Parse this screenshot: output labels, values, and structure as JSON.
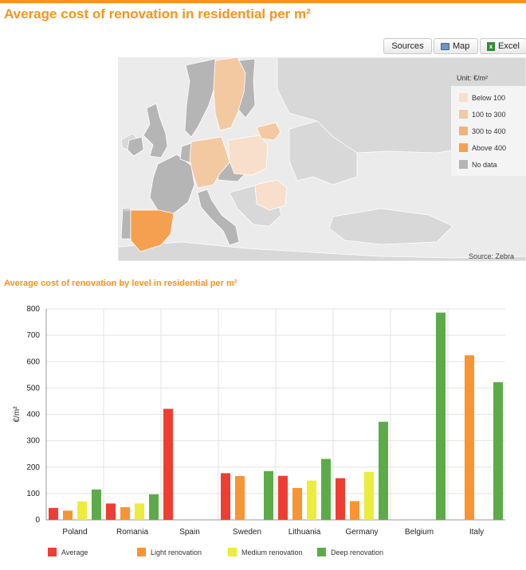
{
  "page": {
    "title": "Average cost of renovation in residential per m²"
  },
  "toolbar": {
    "sources_label": "Sources",
    "map_label": "Map",
    "excel_label": "Excel"
  },
  "map": {
    "unit_label": "Unit: €/m²",
    "legend": [
      {
        "label": "Below 100",
        "color": "#f8dfcb"
      },
      {
        "label": "100 to 300",
        "color": "#f3c9a1"
      },
      {
        "label": "300 to 400",
        "color": "#f3b27a"
      },
      {
        "label": "Above 400",
        "color": "#f4a050"
      },
      {
        "label": "No data",
        "color": "#b5b5b5"
      }
    ],
    "source_label": "Source: Zebra"
  },
  "chart": {
    "title": "Average cost of renovation by level in residential per m²"
  },
  "chart_data": {
    "type": "bar",
    "title": "Average cost of renovation by level in residential per m²",
    "xlabel": "",
    "ylabel": "€/m²",
    "ylim": [
      0,
      800
    ],
    "yticks": [
      0,
      100,
      200,
      300,
      400,
      500,
      600,
      700,
      800
    ],
    "grid": true,
    "legend_position": "bottom",
    "categories": [
      "Poland",
      "Romania",
      "Spain",
      "Sweden",
      "Lithuania",
      "Germany",
      "Belgium",
      "Italy"
    ],
    "series": [
      {
        "name": "Average",
        "color": "#ee3e32",
        "values": [
          45,
          62,
          421,
          177,
          167,
          158,
          null,
          null
        ]
      },
      {
        "name": "Light renovation",
        "color": "#f79533",
        "values": [
          35,
          48,
          null,
          166,
          121,
          71,
          null,
          624
        ]
      },
      {
        "name": "Medium renovation",
        "color": "#ecec3c",
        "values": [
          70,
          62,
          null,
          null,
          149,
          182,
          null,
          null
        ]
      },
      {
        "name": "Deep renovation",
        "color": "#5cab48",
        "values": [
          115,
          97,
          null,
          185,
          231,
          372,
          786,
          522
        ]
      }
    ]
  }
}
